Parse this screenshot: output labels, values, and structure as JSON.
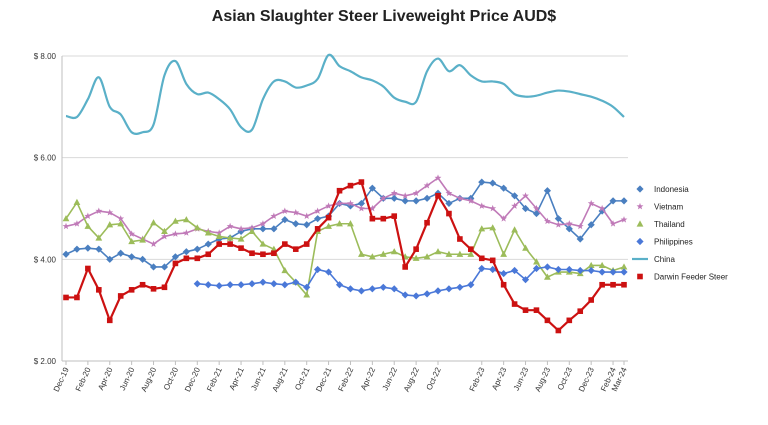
{
  "chart_data": {
    "type": "line",
    "title": "Asian Slaughter Steer Liveweight Price AUD$",
    "xlabel": "",
    "ylabel": "",
    "ylim": [
      2.0,
      8.0
    ],
    "y_ticks": [
      "$ 2.00",
      "$ 4.00",
      "$ 6.00",
      "$ 8.00"
    ],
    "y_tick_values": [
      2.0,
      4.0,
      6.0,
      8.0
    ],
    "x_tick_labels": [
      "Dec-19",
      "Feb-20",
      "Apr-20",
      "Jun-20",
      "Aug-20",
      "Oct-20",
      "Dec-20",
      "Feb-21",
      "Apr-21",
      "Jun-21",
      "Aug-21",
      "Oct-21",
      "Dec-21",
      "Feb-22",
      "Apr-22",
      "Jun-22",
      "Aug-22",
      "Oct-22",
      "Feb-23",
      "Apr-23",
      "Jun-23",
      "Aug-23",
      "Oct-23",
      "Dec-23",
      "Feb-24",
      "Mar-24"
    ],
    "x_tick_indices": [
      0,
      2,
      4,
      6,
      8,
      10,
      12,
      14,
      16,
      18,
      20,
      22,
      24,
      26,
      28,
      30,
      32,
      34,
      38,
      40,
      42,
      44,
      46,
      48,
      50,
      51
    ],
    "n_points": 52,
    "legend_position": "right",
    "grid": "horizontal",
    "series": [
      {
        "name": "Indonesia",
        "color": "#4a7fc0",
        "marker": "diamond",
        "values": [
          4.1,
          4.2,
          4.22,
          4.2,
          4.0,
          4.12,
          4.05,
          4.0,
          3.85,
          3.85,
          4.05,
          4.15,
          4.2,
          4.3,
          4.4,
          4.42,
          4.55,
          4.6,
          4.6,
          4.6,
          4.78,
          4.7,
          4.68,
          4.8,
          4.85,
          5.1,
          5.05,
          5.1,
          5.4,
          5.2,
          5.2,
          5.15,
          5.15,
          5.2,
          5.3,
          5.1,
          5.2,
          5.2,
          5.52,
          5.5,
          5.4,
          5.25,
          5.0,
          4.9,
          5.35,
          4.8,
          4.6,
          4.4,
          4.68,
          4.95,
          5.15,
          5.15
        ]
      },
      {
        "name": "Vietnam",
        "color": "#c07ab8",
        "marker": "star",
        "values": [
          4.65,
          4.7,
          4.85,
          4.95,
          4.92,
          4.8,
          4.5,
          4.4,
          4.3,
          4.45,
          4.5,
          4.52,
          4.6,
          4.55,
          4.52,
          4.65,
          4.6,
          4.62,
          4.7,
          4.85,
          4.95,
          4.92,
          4.85,
          4.95,
          5.05,
          5.1,
          5.1,
          5.0,
          5.0,
          5.2,
          5.3,
          5.25,
          5.3,
          5.45,
          5.6,
          5.3,
          5.2,
          5.15,
          5.05,
          5.0,
          4.8,
          5.05,
          5.25,
          5.0,
          4.75,
          4.68,
          4.7,
          4.65,
          5.1,
          5.0,
          4.7,
          4.78
        ]
      },
      {
        "name": "Thailand",
        "color": "#9cbc5a",
        "marker": "triangle",
        "values": [
          4.8,
          5.12,
          4.65,
          4.42,
          4.68,
          4.7,
          4.35,
          4.38,
          4.72,
          4.55,
          4.75,
          4.78,
          4.62,
          4.52,
          4.45,
          4.42,
          4.4,
          4.55,
          4.3,
          4.2,
          3.78,
          3.55,
          3.3,
          4.55,
          4.65,
          4.7,
          4.7,
          4.1,
          4.05,
          4.1,
          4.15,
          4.05,
          4.02,
          4.05,
          4.15,
          4.1,
          4.1,
          4.1,
          4.6,
          4.62,
          4.1,
          4.58,
          4.22,
          3.95,
          3.65,
          3.75,
          3.75,
          3.72,
          3.88,
          3.88,
          3.78,
          3.85
        ]
      },
      {
        "name": "Philippines",
        "color": "#4a78d8",
        "marker": "diamond",
        "values": [
          null,
          null,
          null,
          null,
          null,
          null,
          null,
          null,
          null,
          null,
          null,
          null,
          3.52,
          3.5,
          3.48,
          3.5,
          3.5,
          3.52,
          3.55,
          3.52,
          3.5,
          3.55,
          3.45,
          3.8,
          3.75,
          3.5,
          3.42,
          3.38,
          3.42,
          3.45,
          3.42,
          3.3,
          3.28,
          3.32,
          3.38,
          3.42,
          3.45,
          3.5,
          3.82,
          3.8,
          3.72,
          3.78,
          3.6,
          3.82,
          3.85,
          3.8,
          3.8,
          3.78,
          3.78,
          3.75,
          3.75,
          3.75
        ]
      },
      {
        "name": "China",
        "color": "#5ab0c8",
        "marker": "none",
        "values": [
          6.82,
          6.8,
          7.15,
          7.58,
          7.0,
          6.85,
          6.5,
          6.5,
          6.65,
          7.62,
          7.9,
          7.45,
          7.25,
          7.28,
          7.15,
          6.95,
          6.6,
          6.55,
          7.15,
          7.5,
          7.5,
          7.38,
          7.42,
          7.55,
          8.02,
          7.8,
          7.7,
          7.58,
          7.52,
          7.4,
          7.18,
          7.1,
          7.1,
          7.7,
          7.95,
          7.7,
          7.82,
          7.62,
          7.5,
          7.5,
          7.45,
          7.25,
          7.2,
          7.22,
          7.28,
          7.32,
          7.3,
          7.25,
          7.2,
          7.12,
          7.0,
          6.8
        ]
      },
      {
        "name": "Darwin Feeder Steer",
        "color": "#cc1111",
        "marker": "square",
        "values": [
          3.25,
          3.25,
          3.82,
          3.4,
          2.8,
          3.28,
          3.4,
          3.5,
          3.42,
          3.45,
          3.92,
          4.02,
          4.02,
          4.1,
          4.3,
          4.3,
          4.22,
          4.12,
          4.1,
          4.12,
          4.3,
          4.2,
          4.3,
          4.6,
          4.82,
          5.35,
          5.45,
          5.52,
          4.8,
          4.8,
          4.85,
          3.85,
          4.2,
          4.72,
          5.25,
          4.9,
          4.4,
          4.2,
          4.02,
          3.98,
          3.5,
          3.12,
          3.0,
          3.0,
          2.8,
          2.6,
          2.8,
          2.98,
          3.2,
          3.5,
          3.5,
          3.5
        ]
      }
    ]
  }
}
